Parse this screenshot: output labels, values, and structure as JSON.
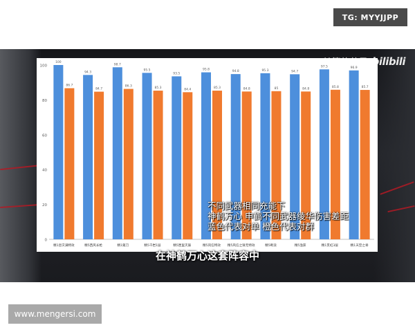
{
  "badges": {
    "telegram": "TG: MYYJJPP",
    "website": "www.mengersi.com"
  },
  "video": {
    "author": "赫箩的苹果",
    "platform_logo": "bilibili",
    "overlay_lines": [
      "不同武器相同充能下",
      "神鹤万心 申鹤不同武器绫华伤害差距",
      "蓝色代表对单 橙色代表对群"
    ],
    "subtitle": "在神鹤万心这套阵容中"
  },
  "chart_data": {
    "type": "bar",
    "title": "",
    "xlabel": "",
    "ylabel": "",
    "ylim": [
      0,
      100
    ],
    "yticks": [
      0,
      20,
      40,
      60,
      80,
      100
    ],
    "grid": false,
    "legend": "none",
    "categories": [
      "精1息灾满特效",
      "精5西风长枪",
      "精1薙刀",
      "精5千岩1层",
      "精5匣里灭辰",
      "精5风信特效",
      "精5风信之锋无特效",
      "精5断浪",
      "精5渔获",
      "精1贯虹3层",
      "精1天空之脊"
    ],
    "series": [
      {
        "color": "#4d8fdc",
        "values": [
          100,
          94.3,
          98.7,
          95.5,
          93.5,
          95.8,
          94.8,
          95.3,
          94.7,
          97.5,
          96.9
        ]
      },
      {
        "color": "#f07a2e",
        "values": [
          86.7,
          84.7,
          86.3,
          85.3,
          84.4,
          85.3,
          84.8,
          85,
          84.8,
          85.8,
          85.7
        ]
      }
    ],
    "value_labels": [
      [
        "100",
        "94.3",
        "98.7",
        "95.5",
        "93.5",
        "95.8",
        "94.8",
        "95.3",
        "94.7",
        "97.5",
        "96.9"
      ],
      [
        "86.7",
        "84.7",
        "86.3",
        "85.3",
        "84.4",
        "85.3",
        "84.8",
        "85",
        "84.8",
        "85.8",
        "85.7"
      ]
    ]
  }
}
